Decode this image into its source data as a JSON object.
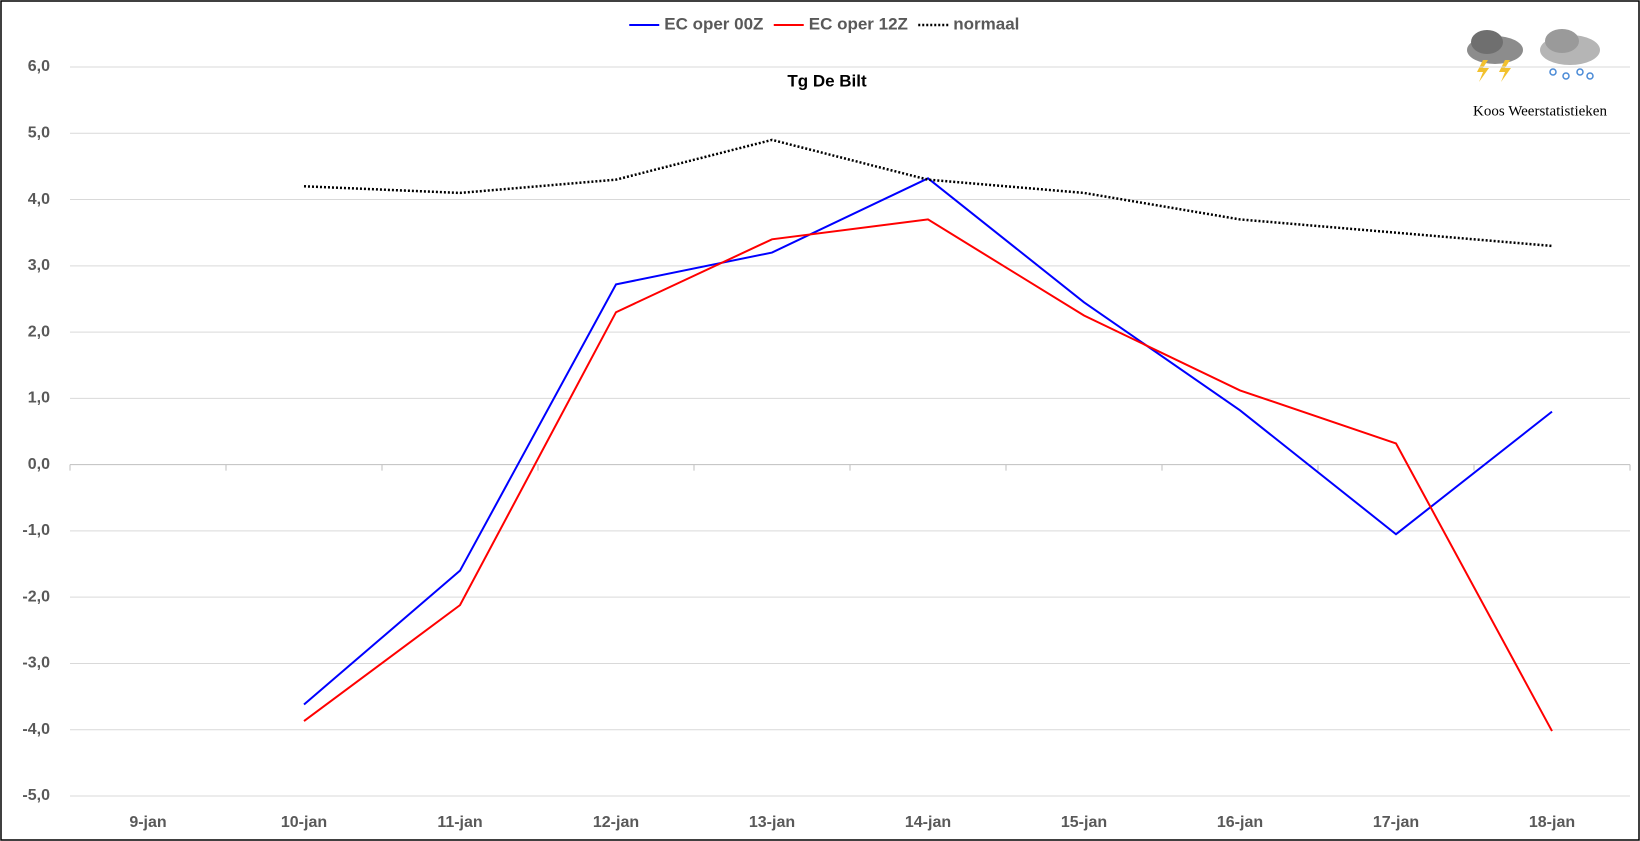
{
  "chart_data": {
    "type": "line",
    "title": "Tg De Bilt",
    "categories": [
      "9-jan",
      "10-jan",
      "11-jan",
      "12-jan",
      "13-jan",
      "14-jan",
      "15-jan",
      "16-jan",
      "17-jan",
      "18-jan"
    ],
    "series": [
      {
        "name": "EC oper 00Z",
        "color": "#0000ff",
        "dash": "solid",
        "values": [
          null,
          -3.62,
          -1.6,
          2.72,
          3.2,
          4.32,
          2.45,
          0.82,
          -1.05,
          0.8
        ]
      },
      {
        "name": "EC oper 12Z",
        "color": "#ff0000",
        "dash": "solid",
        "values": [
          null,
          -3.87,
          -2.12,
          2.3,
          3.4,
          3.7,
          2.25,
          1.12,
          0.32,
          -4.02
        ]
      },
      {
        "name": "normaal",
        "color": "#000000",
        "dash": "dotted",
        "values": [
          null,
          4.2,
          4.1,
          4.3,
          4.9,
          4.3,
          4.1,
          3.7,
          3.5,
          3.3
        ]
      }
    ],
    "ylim": [
      -5,
      6
    ],
    "yticks": [
      {
        "value": -5,
        "label": "-5,0"
      },
      {
        "value": -4,
        "label": "-4,0"
      },
      {
        "value": -3,
        "label": "-3,0"
      },
      {
        "value": -2,
        "label": "-2,0"
      },
      {
        "value": -1,
        "label": "-1,0"
      },
      {
        "value": 0,
        "label": "0,0"
      },
      {
        "value": 1,
        "label": "1,0"
      },
      {
        "value": 2,
        "label": "2,0"
      },
      {
        "value": 3,
        "label": "3,0"
      },
      {
        "value": 4,
        "label": "4,0"
      },
      {
        "value": 5,
        "label": "5,0"
      },
      {
        "value": 6,
        "label": "6,0"
      }
    ],
    "grid": true,
    "legend": "top",
    "credit": "Koos Weerstatistieken"
  }
}
